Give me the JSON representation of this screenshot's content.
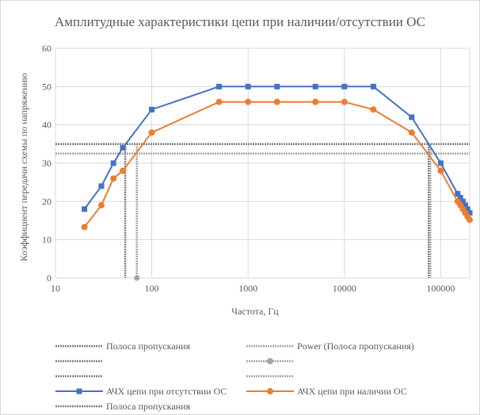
{
  "chart_data": {
    "type": "line",
    "title": "Амплитудные характеристики цепи при наличии/отсутствии ОС",
    "xlabel": "Частота, Гц",
    "ylabel": "Коэффициент передачи схемы по напряжению",
    "x_scale": "log",
    "xlim": [
      10,
      200000
    ],
    "ylim": [
      0,
      60
    ],
    "x_ticks": [
      10,
      100,
      1000,
      10000,
      100000
    ],
    "x_tick_labels": [
      "10",
      "100",
      "1000",
      "10000",
      "100000"
    ],
    "y_ticks": [
      0,
      10,
      20,
      30,
      40,
      50,
      60
    ],
    "y_tick_labels": [
      "0",
      "10",
      "20",
      "30",
      "40",
      "50",
      "60"
    ],
    "grid": true,
    "legend_position": "bottom",
    "series": [
      {
        "name": "АЧХ цепи при отсутствии ОС",
        "color": "#4472c4",
        "marker": "square",
        "x": [
          20,
          30,
          40,
          50,
          100,
          500,
          1000,
          2000,
          5000,
          10000,
          20000,
          50000,
          100000,
          150000,
          160000,
          170000,
          180000,
          190000,
          200000
        ],
        "y": [
          18,
          24,
          30,
          34,
          44,
          50,
          50,
          50,
          50,
          50,
          50,
          42,
          30,
          22,
          21,
          20,
          19,
          18,
          17
        ]
      },
      {
        "name": "АЧХ цепи при наличии ОС",
        "color": "#ed7d31",
        "marker": "circle",
        "x": [
          20,
          30,
          40,
          50,
          100,
          500,
          1000,
          2000,
          5000,
          10000,
          20000,
          50000,
          100000,
          150000,
          160000,
          170000,
          180000,
          190000,
          200000
        ],
        "y": [
          13.3,
          19,
          26,
          28,
          38,
          46,
          46,
          46,
          46,
          46,
          44,
          38,
          28,
          20,
          19,
          18,
          17,
          16,
          15.2
        ]
      }
    ],
    "helper_lines": [
      {
        "legend": "Полоса пропускания",
        "color": "#808080",
        "orientation": "horizontal",
        "y": 35
      },
      {
        "legend": "Power (Полоса пропускания)",
        "color": "#a5a5a5",
        "orientation": "horizontal",
        "y": 32.5
      },
      {
        "legend": "",
        "color": "#808080",
        "orientation": "vertical",
        "x": 53
      },
      {
        "legend": "",
        "color": "#a5a5a5",
        "orientation": "vertical",
        "x": 70,
        "point_y": 0
      },
      {
        "legend": "",
        "color": "#808080",
        "orientation": "vertical",
        "x": 75000
      },
      {
        "legend": "",
        "color": "#a5a5a5",
        "orientation": "vertical",
        "x": 78000
      },
      {
        "legend": "Полоса пропускания",
        "color": "#808080",
        "orientation": "none"
      }
    ],
    "legend": [
      {
        "label": "Полоса пропускания",
        "style": "dotted",
        "color": "#808080"
      },
      {
        "label": "Power (Полоса пропускания)",
        "style": "dotted",
        "color": "#a5a5a5"
      },
      {
        "label": "",
        "style": "dotted",
        "color": "#808080"
      },
      {
        "label": "",
        "style": "dotted-circle",
        "color": "#a5a5a5"
      },
      {
        "label": "",
        "style": "dotted",
        "color": "#808080"
      },
      {
        "label": "",
        "style": "dotted",
        "color": "#a5a5a5"
      },
      {
        "label": "АЧХ цепи при отсутствии ОС",
        "style": "line-square",
        "color": "#4472c4"
      },
      {
        "label": "АЧХ цепи при наличии ОС",
        "style": "line-circle",
        "color": "#ed7d31"
      },
      {
        "label": "Полоса пропускания",
        "style": "dotted",
        "color": "#808080"
      }
    ]
  }
}
